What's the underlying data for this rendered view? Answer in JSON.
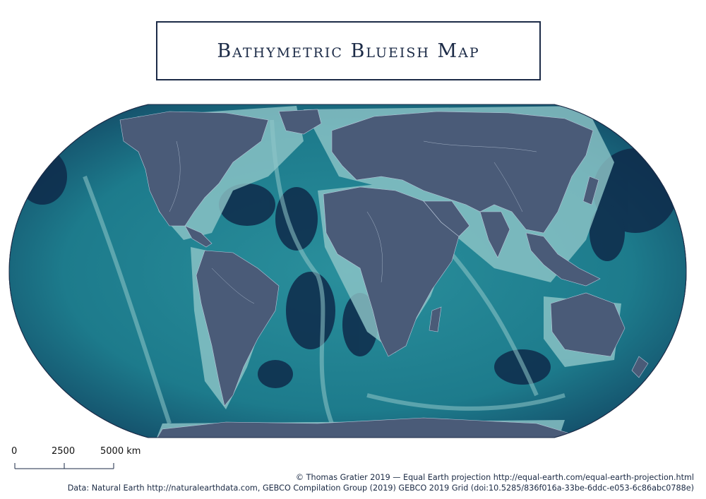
{
  "title": "Bathymetric Blueish Map",
  "colors": {
    "ocean_deep": "#0e2a4a",
    "ocean_mid": "#1c7b8b",
    "ocean_shelf": "#8fc6c8",
    "land": "#4a5b78",
    "rivers": "#c9d6e6",
    "ink": "#1c2b47"
  },
  "scale_bar": {
    "labels": [
      "0",
      "2500",
      "5000 km"
    ]
  },
  "credits": {
    "line1": "© Thomas Gratier 2019 — Equal Earth projection http://equal-earth.com/equal-earth-projection.html",
    "line2": "Data: Natural Earth http://naturalearthdata.com, GEBCO Compilation Group (2019) GEBCO 2019 Grid (doi:10.5285/836f016a-33be-6ddc-e053-6c86abc0788e)"
  }
}
